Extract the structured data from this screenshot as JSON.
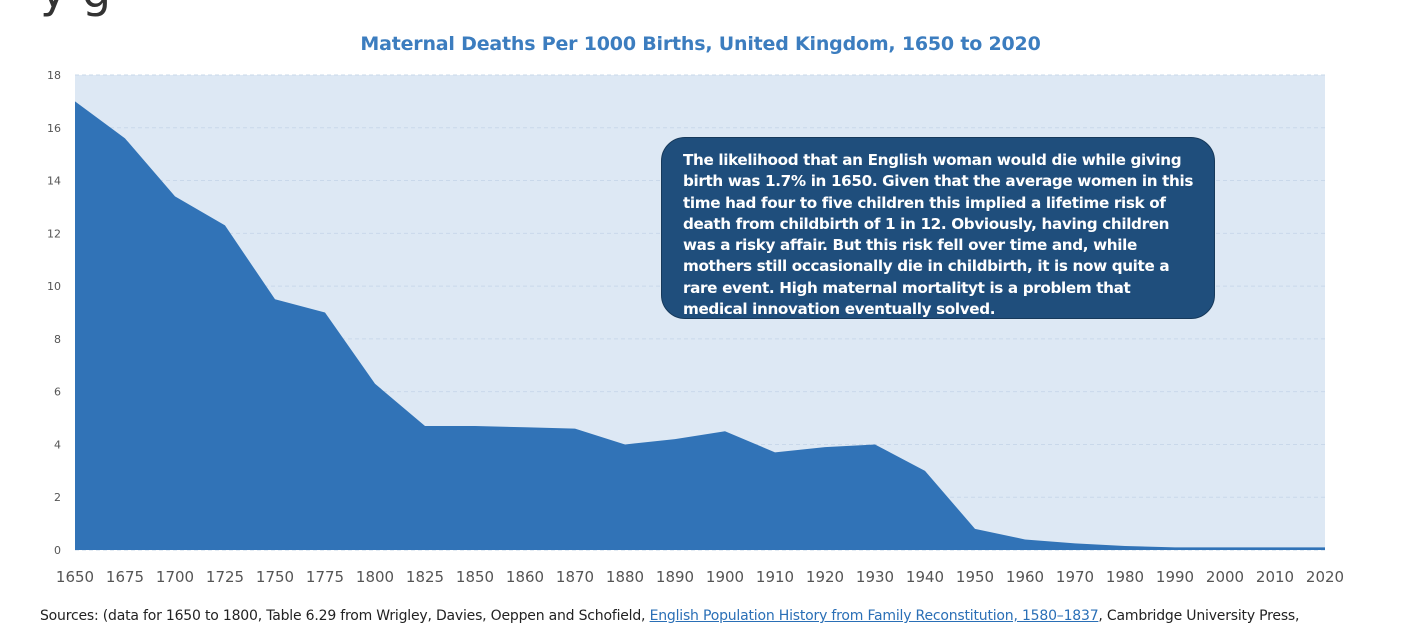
{
  "page": {
    "heading_fragment": "y g"
  },
  "chart_data": {
    "type": "area",
    "title": "Maternal Deaths Per 1000 Births, United Kingdom, 1650 to 2020",
    "xlabel": "",
    "ylabel": "",
    "ylim": [
      0,
      18
    ],
    "yticks": [
      0,
      2,
      4,
      6,
      8,
      10,
      12,
      14,
      16,
      18
    ],
    "grid": true,
    "categories": [
      "1650",
      "1675",
      "1700",
      "1725",
      "1750",
      "1775",
      "1800",
      "1825",
      "1850",
      "1860",
      "1870",
      "1880",
      "1890",
      "1900",
      "1910",
      "1920",
      "1930",
      "1940",
      "1950",
      "1960",
      "1970",
      "1980",
      "1990",
      "2000",
      "2010",
      "2020"
    ],
    "values": [
      17.0,
      15.6,
      13.4,
      12.3,
      9.5,
      9.0,
      6.3,
      4.7,
      4.7,
      4.65,
      4.6,
      4.0,
      4.2,
      4.5,
      3.7,
      3.9,
      4.0,
      3.0,
      0.8,
      0.4,
      0.25,
      0.15,
      0.1,
      0.1,
      0.1,
      0.1
    ],
    "colors": {
      "area_fill": "#3173b7",
      "plot_background": "#dde8f4",
      "gridline": "#c9d8ea",
      "title": "#3c7dbf",
      "callout_background": "#1f4e7c"
    }
  },
  "annotation": {
    "text": "The likelihood that an English woman would die while giving birth was 1.7% in 1650. Given that the average women in this time had four to five children this implied a lifetime risk of death from childbirth of 1 in 12. Obviously, having children was a risky affair. But this risk fell over time and, while mothers still occasionally die in childbirth, it is now quite a rare event. High maternal mortalityt is a problem that medical innovation eventually solved."
  },
  "sources": {
    "prefix": "Sources: (data for 1650 to 1800, Table 6.29 from Wrigley, Davies, Oeppen and Schofield, ",
    "link_text": "English Population History from Family Reconstitution, 1580–1837",
    "suffix": ", Cambridge University Press,"
  }
}
